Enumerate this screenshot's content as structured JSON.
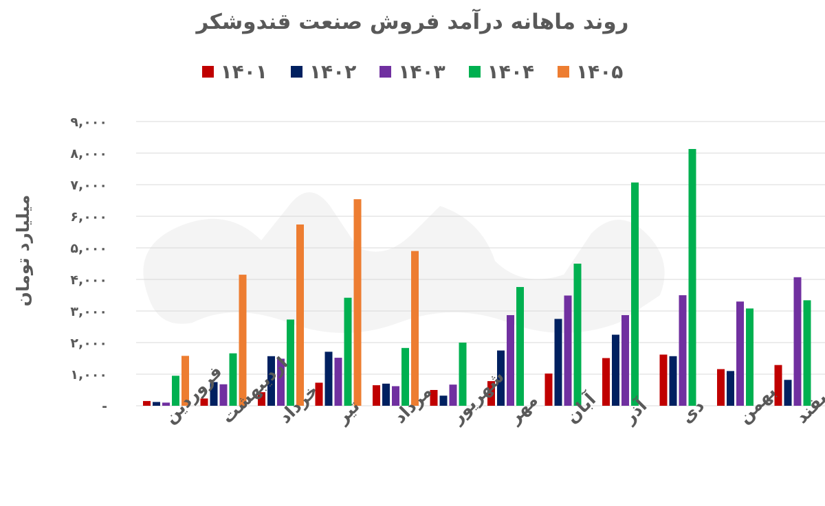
{
  "chart_data": {
    "type": "bar",
    "title": "روند ماهانه درآمد فروش صنعت قندوشکر",
    "ylabel": "میلیارد تومان",
    "xlabel": "",
    "ylim": [
      0,
      9000
    ],
    "yticks": [
      0,
      1000,
      2000,
      3000,
      4000,
      5000,
      6000,
      7000,
      8000,
      9000
    ],
    "ytick_labels": [
      "-",
      "۱,۰۰۰",
      "۲,۰۰۰",
      "۳,۰۰۰",
      "۴,۰۰۰",
      "۵,۰۰۰",
      "۶,۰۰۰",
      "۷,۰۰۰",
      "۸,۰۰۰",
      "۹,۰۰۰"
    ],
    "grid": true,
    "legend_position": "top",
    "categories": [
      "فروردین",
      "اردیبهشت",
      "خرداد",
      "تیر",
      "مرداد",
      "شهریور",
      "مهر",
      "آبان",
      "آذر",
      "دی",
      "بهمن",
      "اسفند"
    ],
    "series": [
      {
        "name": "۱۴۰۱",
        "color": "#C00000",
        "values": [
          150,
          230,
          430,
          730,
          650,
          500,
          780,
          1020,
          1510,
          1620,
          1160,
          1290
        ]
      },
      {
        "name": "۱۴۰۲",
        "color": "#002060",
        "values": [
          120,
          750,
          1570,
          1710,
          700,
          320,
          1750,
          2750,
          2250,
          1570,
          1100,
          820
        ]
      },
      {
        "name": "۱۴۰۳",
        "color": "#7030A0",
        "values": [
          100,
          680,
          1490,
          1520,
          620,
          670,
          2870,
          3490,
          2870,
          3500,
          3300,
          4070
        ]
      },
      {
        "name": "۱۴۰۴",
        "color": "#00B050",
        "values": [
          950,
          1660,
          2730,
          3420,
          1830,
          2000,
          3760,
          4500,
          7070,
          8130,
          3080,
          3340
        ]
      },
      {
        "name": "۱۴۰۵",
        "color": "#ED7D31",
        "values": [
          1580,
          4150,
          5740,
          6540,
          4900,
          null,
          null,
          null,
          null,
          null,
          null,
          null
        ]
      }
    ]
  }
}
